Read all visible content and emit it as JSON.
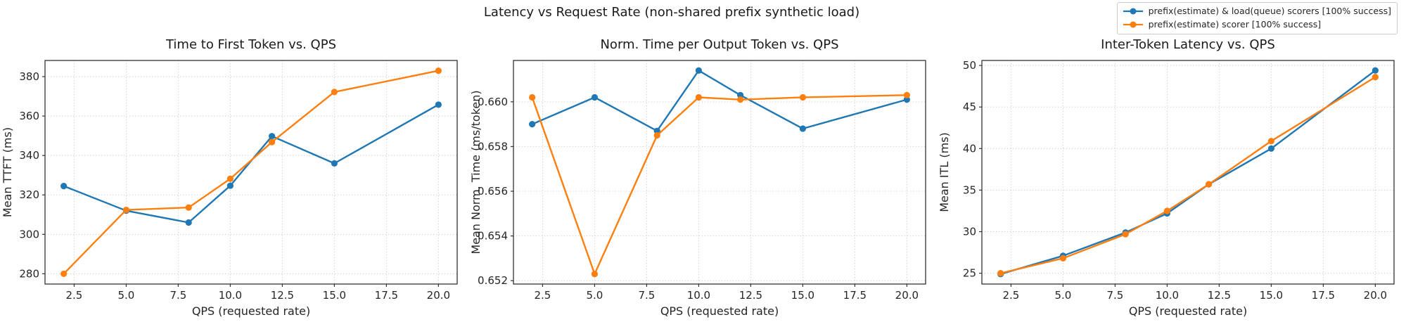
{
  "figure": {
    "title": "Latency vs Request Rate (non-shared prefix synthetic load)",
    "background": "#ffffff"
  },
  "legend": {
    "position": "figure-top-right",
    "items": [
      {
        "label": "prefix(estimate) & load(queue) scorers [100% success]",
        "color": "#1f77b4",
        "marker": "circle-on-line"
      },
      {
        "label": "prefix(estimate) scorer [100% success]",
        "color": "#ff7f0e",
        "marker": "circle-on-line"
      }
    ]
  },
  "chart_data": [
    {
      "type": "line",
      "title": "Time to First Token vs. QPS",
      "xlabel": "QPS (requested rate)",
      "ylabel": "Mean TTFT (ms)",
      "x": [
        2,
        5,
        8,
        10,
        12,
        15,
        20
      ],
      "xlim": [
        1.1,
        20.9
      ],
      "ylim": [
        274.8,
        388.2
      ],
      "xtick_values": [
        2.5,
        5.0,
        7.5,
        10.0,
        12.5,
        15.0,
        17.5,
        20.0
      ],
      "xtick_labels": [
        "2.5",
        "5.0",
        "7.5",
        "10.0",
        "12.5",
        "15.0",
        "17.5",
        "20.0"
      ],
      "ytick_values": [
        280,
        300,
        320,
        340,
        360,
        380
      ],
      "ytick_labels": [
        "280",
        "300",
        "320",
        "340",
        "360",
        "380"
      ],
      "grid": true,
      "series": [
        {
          "name": "prefix(estimate) & load(queue) scorers [100% success]",
          "color": "#1f77b4",
          "values": [
            324.5,
            312.0,
            306.0,
            324.7,
            349.8,
            336.0,
            365.8
          ]
        },
        {
          "name": "prefix(estimate) scorer [100% success]",
          "color": "#ff7f0e",
          "values": [
            280.0,
            312.4,
            313.6,
            328.2,
            346.8,
            372.2,
            383.0
          ]
        }
      ]
    },
    {
      "type": "line",
      "title": "Norm. Time per Output Token vs. QPS",
      "xlabel": "QPS (requested rate)",
      "ylabel": "Mean Norm. Time (ms/token)",
      "x": [
        2,
        5,
        8,
        10,
        12,
        15,
        20
      ],
      "xlim": [
        1.1,
        20.9
      ],
      "ylim": [
        0.65185,
        0.66185
      ],
      "xtick_values": [
        2.5,
        5.0,
        7.5,
        10.0,
        12.5,
        15.0,
        17.5,
        20.0
      ],
      "xtick_labels": [
        "2.5",
        "5.0",
        "7.5",
        "10.0",
        "12.5",
        "15.0",
        "17.5",
        "20.0"
      ],
      "ytick_values": [
        0.652,
        0.654,
        0.656,
        0.658,
        0.66
      ],
      "ytick_labels": [
        "0.652",
        "0.654",
        "0.656",
        "0.658",
        "0.660"
      ],
      "grid": true,
      "series": [
        {
          "name": "prefix(estimate) & load(queue) scorers [100% success]",
          "color": "#1f77b4",
          "values": [
            0.659,
            0.6602,
            0.6587,
            0.6614,
            0.6603,
            0.6588,
            0.6601
          ]
        },
        {
          "name": "prefix(estimate) scorer [100% success]",
          "color": "#ff7f0e",
          "values": [
            0.6602,
            0.6523,
            0.6585,
            0.6602,
            0.6601,
            0.6602,
            0.6603
          ]
        }
      ]
    },
    {
      "type": "line",
      "title": "Inter-Token Latency vs. QPS",
      "xlabel": "QPS (requested rate)",
      "ylabel": "Mean ITL (ms)",
      "x": [
        2,
        5,
        8,
        10,
        12,
        15,
        20
      ],
      "xlim": [
        1.1,
        20.9
      ],
      "ylim": [
        23.7,
        50.6
      ],
      "xtick_values": [
        2.5,
        5.0,
        7.5,
        10.0,
        12.5,
        15.0,
        17.5,
        20.0
      ],
      "xtick_labels": [
        "2.5",
        "5.0",
        "7.5",
        "10.0",
        "12.5",
        "15.0",
        "17.5",
        "20.0"
      ],
      "ytick_values": [
        25,
        30,
        35,
        40,
        45,
        50
      ],
      "ytick_labels": [
        "25",
        "30",
        "35",
        "40",
        "45",
        "50"
      ],
      "grid": true,
      "series": [
        {
          "name": "prefix(estimate) & load(queue) scorers [100% success]",
          "color": "#1f77b4",
          "values": [
            24.9,
            27.1,
            29.9,
            32.2,
            35.7,
            40.0,
            49.4
          ]
        },
        {
          "name": "prefix(estimate) scorer [100% success]",
          "color": "#ff7f0e",
          "values": [
            25.0,
            26.8,
            29.7,
            32.5,
            35.7,
            40.9,
            48.6
          ]
        }
      ]
    }
  ]
}
